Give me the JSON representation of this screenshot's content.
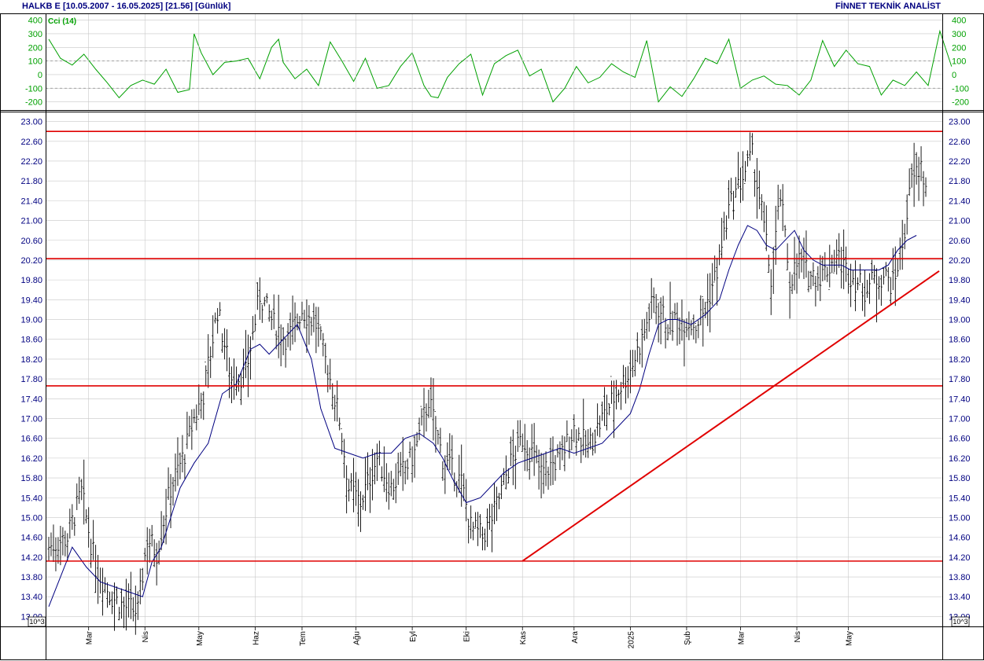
{
  "header": {
    "symbol": "HALKB E",
    "range": "[10.05.2007 - 16.05.2025]",
    "last": "[21.56]",
    "period": "[Günlük]",
    "publisher": "FİNNET TEKNİK ANALİST"
  },
  "colors": {
    "price_axis_text": "#000080",
    "cci_axis_text": "#00a000",
    "cci_line": "#00a000",
    "moving_average": "#000080",
    "price_bars": "#000000",
    "level_lines": "#e00000",
    "trend_line": "#e00000",
    "grid": "#c8c8c8"
  },
  "chart_data": [
    {
      "type": "line",
      "title": "Cci (14)",
      "indicator": "Cci",
      "period": 14,
      "ylim": [
        -260,
        450
      ],
      "yticks": [
        400,
        300,
        200,
        100,
        0,
        -100,
        -200
      ],
      "reference_lines": [
        100,
        -100
      ],
      "grid": true,
      "x": [
        0,
        5,
        10,
        15,
        20,
        25,
        30,
        35,
        40,
        45,
        50,
        55,
        60,
        62,
        65,
        70,
        75,
        80,
        85,
        90,
        95,
        98,
        100,
        105,
        110,
        115,
        120,
        125,
        130,
        135,
        140,
        145,
        150,
        155,
        160,
        163,
        166,
        170,
        175,
        180,
        185,
        190,
        195,
        200,
        205,
        210,
        215,
        220,
        225,
        230,
        235,
        240,
        245,
        250,
        255,
        260,
        265,
        270,
        275,
        280,
        285,
        290,
        295,
        300,
        305,
        310,
        315,
        320,
        325,
        330,
        335,
        340,
        345,
        350,
        355,
        360,
        365,
        370,
        375,
        380,
        385
      ],
      "values": [
        260,
        120,
        70,
        150,
        40,
        -60,
        -170,
        -80,
        -40,
        -70,
        40,
        -130,
        -110,
        300,
        160,
        0,
        90,
        100,
        120,
        -30,
        200,
        260,
        90,
        -30,
        40,
        -80,
        240,
        100,
        -50,
        120,
        -100,
        -80,
        60,
        160,
        -80,
        -160,
        -170,
        -20,
        80,
        150,
        -150,
        80,
        140,
        180,
        -10,
        40,
        -200,
        -100,
        60,
        -60,
        -20,
        80,
        20,
        -20,
        250,
        -200,
        -90,
        -160,
        -30,
        120,
        80,
        260,
        -100,
        -40,
        -10,
        -70,
        -80,
        -150,
        -40,
        250,
        60,
        180,
        80,
        60,
        -150,
        -40,
        -80,
        20,
        -80,
        320,
        60
      ],
      "sampling_note": ""
    },
    {
      "type": "ohlc",
      "title": "",
      "ylim": [
        12.8,
        23.2
      ],
      "yticks": [
        23.0,
        22.6,
        22.2,
        21.8,
        21.4,
        21.0,
        20.6,
        20.2,
        19.8,
        19.4,
        19.0,
        18.6,
        18.2,
        17.8,
        17.4,
        17.0,
        16.6,
        16.2,
        15.8,
        15.4,
        15.0,
        14.6,
        14.2,
        13.8,
        13.4,
        13.0
      ],
      "scale_unit": "10^3",
      "x_labels": [
        "Mar",
        "Nis",
        "May",
        "Haz",
        "Tem",
        "Ağu",
        "Eyl",
        "Eki",
        "Kas",
        "Ara",
        "2025",
        "Şub",
        "Mar",
        "Nis",
        "May"
      ],
      "x_label_positions": [
        17,
        41,
        64,
        88,
        108,
        131,
        155,
        178,
        202,
        224,
        248,
        272,
        295,
        319,
        341
      ],
      "bar_count": 375,
      "close_path_x": [
        0,
        8,
        14,
        20,
        27,
        32,
        38,
        42,
        46,
        52,
        58,
        62,
        66,
        72,
        78,
        84,
        90,
        96,
        102,
        108,
        114,
        120,
        124,
        128,
        133,
        140,
        146,
        152,
        156,
        162,
        168,
        176,
        180,
        185,
        190,
        196,
        202,
        206,
        210,
        218,
        224,
        230,
        236,
        242,
        248,
        253,
        258,
        264,
        270,
        276,
        280,
        285,
        290,
        296,
        300,
        304,
        308,
        312,
        316,
        320,
        324,
        330,
        336,
        340,
        344,
        348,
        352,
        356,
        360,
        364,
        368,
        372,
        375
      ],
      "close_path_y": [
        14.4,
        14.6,
        15.5,
        14.0,
        13.4,
        13.2,
        13.1,
        14.6,
        14.3,
        15.6,
        16.3,
        17.0,
        17.5,
        19.2,
        17.8,
        17.9,
        19.5,
        18.9,
        18.6,
        19.2,
        18.9,
        17.8,
        17.0,
        15.6,
        15.3,
        16.2,
        15.6,
        16.0,
        16.3,
        17.4,
        16.2,
        15.7,
        14.8,
        14.6,
        15.1,
        16.0,
        16.6,
        16.3,
        15.9,
        16.2,
        16.8,
        16.4,
        17.0,
        17.5,
        18.0,
        18.6,
        19.4,
        18.9,
        19.0,
        18.9,
        19.2,
        20.0,
        21.2,
        21.9,
        22.3,
        21.2,
        19.8,
        21.5,
        19.8,
        20.2,
        19.9,
        19.9,
        20.3,
        20.0,
        19.8,
        19.6,
        19.8,
        19.9,
        19.7,
        20.5,
        21.8,
        22.1,
        21.4
      ],
      "moving_average_x": [
        0,
        10,
        16,
        22,
        28,
        34,
        40,
        44,
        48,
        56,
        62,
        68,
        74,
        80,
        86,
        90,
        94,
        100,
        106,
        112,
        116,
        122,
        128,
        134,
        140,
        146,
        152,
        158,
        164,
        168,
        172,
        178,
        184,
        190,
        194,
        200,
        206,
        212,
        218,
        224,
        230,
        236,
        242,
        248,
        252,
        256,
        260,
        264,
        268,
        274,
        280,
        286,
        290,
        294,
        298,
        302,
        306,
        310,
        314,
        318,
        322,
        326,
        330,
        334,
        338,
        342,
        346,
        350,
        354,
        358,
        362,
        366,
        370,
        375
      ],
      "moving_average_y": [
        13.2,
        14.4,
        14.0,
        13.7,
        13.6,
        13.5,
        13.4,
        14.1,
        14.4,
        15.6,
        16.1,
        16.5,
        17.5,
        17.7,
        18.4,
        18.5,
        18.3,
        18.6,
        18.9,
        18.2,
        17.2,
        16.4,
        16.3,
        16.2,
        16.3,
        16.3,
        16.6,
        16.7,
        16.5,
        16.2,
        15.8,
        15.3,
        15.4,
        15.7,
        15.9,
        16.1,
        16.2,
        16.3,
        16.4,
        16.3,
        16.4,
        16.5,
        16.8,
        17.1,
        17.6,
        18.3,
        18.9,
        19.0,
        19.0,
        18.9,
        19.1,
        19.4,
        20.0,
        20.5,
        20.9,
        20.8,
        20.5,
        20.4,
        20.6,
        20.8,
        20.4,
        20.2,
        20.1,
        20.1,
        20.1,
        20.0,
        20.0,
        20.0,
        20.0,
        20.1,
        20.4,
        20.6,
        20.7
      ],
      "horizontal_levels": [
        22.8,
        20.23,
        17.66,
        14.12
      ],
      "trend_line": {
        "from": {
          "bar": 202,
          "price": 14.12
        },
        "to": {
          "bar": 375,
          "price": 19.98
        }
      },
      "grid": true
    }
  ]
}
